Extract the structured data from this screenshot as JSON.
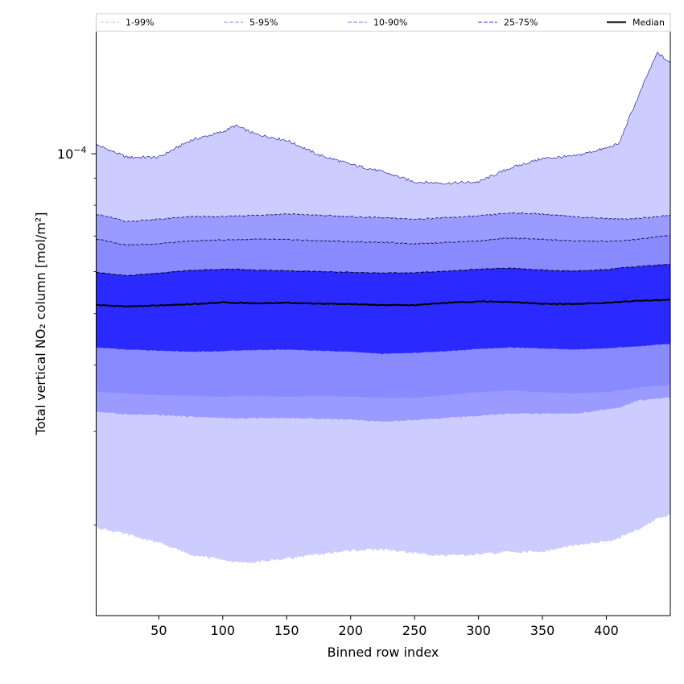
{
  "chart_data": {
    "type": "area",
    "xlabel": "Binned row index",
    "ylabel": "Total vertical NO₂ column [mol/m²]",
    "yscale": "log",
    "xlim": [
      1,
      450
    ],
    "ylim": [
      1.35e-05,
      0.00017
    ],
    "x_ticks": [
      50,
      100,
      150,
      200,
      250,
      300,
      350,
      400
    ],
    "y_tick_labels": [
      {
        "value": 0.0001,
        "base": "10",
        "exponent": "−4"
      }
    ],
    "grid": false,
    "legend": {
      "placement": "top",
      "entries": [
        {
          "label": "1-99%",
          "color": "#ccccff",
          "style": "dashed"
        },
        {
          "label": "5-95%",
          "color": "#9a9aff",
          "style": "dashed"
        },
        {
          "label": "10-90%",
          "color": "#8a8aff",
          "style": "dashed"
        },
        {
          "label": "25-75%",
          "color": "#5050ff",
          "style": "dashed"
        },
        {
          "label": "Median",
          "color": "#000000",
          "style": "solid"
        }
      ]
    },
    "x": [
      1,
      25,
      50,
      75,
      100,
      110,
      125,
      150,
      175,
      200,
      225,
      250,
      275,
      300,
      325,
      350,
      375,
      400,
      410,
      425,
      440,
      450
    ],
    "bands": [
      {
        "name": "1-99%",
        "color": "#ccccff",
        "lower": [
          1.98e-05,
          1.92e-05,
          1.85e-05,
          1.76e-05,
          1.72e-05,
          1.7e-05,
          1.7e-05,
          1.73e-05,
          1.76e-05,
          1.79e-05,
          1.8e-05,
          1.77e-05,
          1.75e-05,
          1.76e-05,
          1.78e-05,
          1.78e-05,
          1.83e-05,
          1.86e-05,
          1.89e-05,
          1.96e-05,
          2.06e-05,
          2.09e-05
        ],
        "upper": [
          0.000104,
          9.85e-05,
          9.85e-05,
          0.000106,
          0.00011,
          0.000113,
          0.000109,
          0.000106,
          9.95e-05,
          9.55e-05,
          9.25e-05,
          8.85e-05,
          8.8e-05,
          8.85e-05,
          9.4e-05,
          9.8e-05,
          9.9e-05,
          0.0001025,
          0.0001045,
          0.000128,
          0.000155,
          0.000148
        ]
      },
      {
        "name": "5-95%",
        "color": "#9a9aff",
        "lower": [
          3.27e-05,
          3.23e-05,
          3.22e-05,
          3.2e-05,
          3.18e-05,
          3.17e-05,
          3.18e-05,
          3.18e-05,
          3.17e-05,
          3.16e-05,
          3.13e-05,
          3.15e-05,
          3.18e-05,
          3.21e-05,
          3.24e-05,
          3.24e-05,
          3.24e-05,
          3.3e-05,
          3.33e-05,
          3.43e-05,
          3.46e-05,
          3.48e-05
        ],
        "upper": [
          7.7e-05,
          7.45e-05,
          7.53e-05,
          7.61e-05,
          7.61e-05,
          7.63e-05,
          7.66e-05,
          7.7e-05,
          7.66e-05,
          7.61e-05,
          7.58e-05,
          7.53e-05,
          7.58e-05,
          7.63e-05,
          7.74e-05,
          7.7e-05,
          7.61e-05,
          7.56e-05,
          7.53e-05,
          7.56e-05,
          7.61e-05,
          7.66e-05
        ]
      },
      {
        "name": "10-90%",
        "color": "#8a8aff",
        "lower": [
          3.56e-05,
          3.54e-05,
          3.51e-05,
          3.5e-05,
          3.49e-05,
          3.5e-05,
          3.5e-05,
          3.49e-05,
          3.5e-05,
          3.49e-05,
          3.47e-05,
          3.47e-05,
          3.51e-05,
          3.56e-05,
          3.58e-05,
          3.56e-05,
          3.54e-05,
          3.56e-05,
          3.58e-05,
          3.63e-05,
          3.66e-05,
          3.67e-05
        ],
        "upper": [
          6.91e-05,
          6.73e-05,
          6.77e-05,
          6.85e-05,
          6.88e-05,
          6.89e-05,
          6.9e-05,
          6.89e-05,
          6.86e-05,
          6.83e-05,
          6.81e-05,
          6.77e-05,
          6.81e-05,
          6.85e-05,
          6.94e-05,
          6.9e-05,
          6.85e-05,
          6.84e-05,
          6.85e-05,
          6.9e-05,
          6.98e-05,
          7.02e-05
        ]
      },
      {
        "name": "25-75%",
        "color": "#5050ff",
        "lower": [
          4.32e-05,
          4.28e-05,
          4.26e-05,
          4.24e-05,
          4.25e-05,
          4.26e-05,
          4.27e-05,
          4.28e-05,
          4.26e-05,
          4.24e-05,
          4.2e-05,
          4.22e-05,
          4.25e-05,
          4.29e-05,
          4.32e-05,
          4.3e-05,
          4.28e-05,
          4.3e-05,
          4.32e-05,
          4.34e-05,
          4.37e-05,
          4.38e-05
        ],
        "upper": [
          5.98e-05,
          5.89e-05,
          5.96e-05,
          6.03e-05,
          6.06e-05,
          6.06e-05,
          6.04e-05,
          6.02e-05,
          6e-05,
          5.98e-05,
          5.96e-05,
          5.97e-05,
          6.01e-05,
          6.06e-05,
          6.09e-05,
          6.04e-05,
          6.01e-05,
          6.05e-05,
          6.09e-05,
          6.13e-05,
          6.17e-05,
          6.19e-05
        ]
      }
    ],
    "median": {
      "name": "Median",
      "color": "#000000",
      "values": [
        5.19e-05,
        5.16e-05,
        5.18e-05,
        5.21e-05,
        5.25e-05,
        5.24e-05,
        5.23e-05,
        5.24e-05,
        5.22e-05,
        5.21e-05,
        5.19e-05,
        5.19e-05,
        5.24e-05,
        5.27e-05,
        5.26e-05,
        5.22e-05,
        5.21e-05,
        5.24e-05,
        5.26e-05,
        5.29e-05,
        5.3e-05,
        5.31e-05
      ]
    }
  }
}
